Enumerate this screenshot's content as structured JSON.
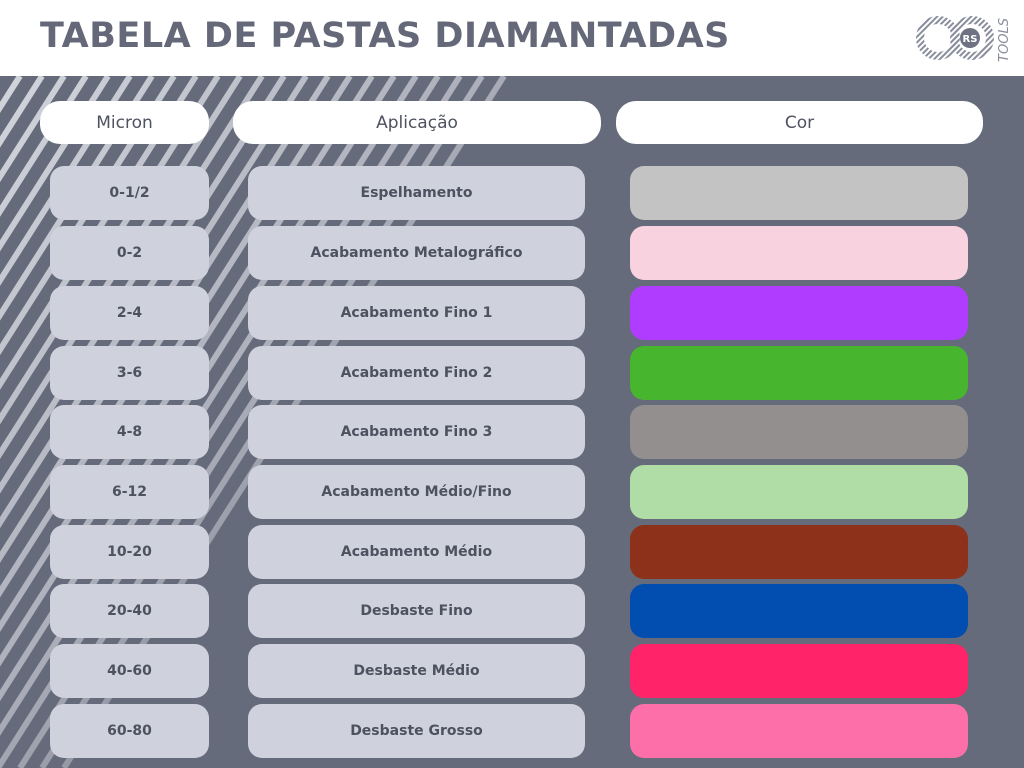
{
  "title": "TABELA DE PASTAS DIAMANTADAS",
  "logo": {
    "text": "RS",
    "subtext": "TOOLS"
  },
  "headers": {
    "micron": "Micron",
    "application": "Aplicação",
    "color": "Cor"
  },
  "rows": [
    {
      "micron": "0-1/2",
      "application": "Espelhamento",
      "color": "#c4c3c4"
    },
    {
      "micron": "0-2",
      "application": "Acabamento Metalográfico",
      "color": "#f8d2df"
    },
    {
      "micron": "2-4",
      "application": "Acabamento Fino 1",
      "color": "#b03cff"
    },
    {
      "micron": "3-6",
      "application": "Acabamento Fino 2",
      "color": "#48b52f"
    },
    {
      "micron": "4-8",
      "application": "Acabamento Fino 3",
      "color": "#948f8f"
    },
    {
      "micron": "6-12",
      "application": "Acabamento Médio/Fino",
      "color": "#b0dca5"
    },
    {
      "micron": "10-20",
      "application": "Acabamento Médio",
      "color": "#8d311b"
    },
    {
      "micron": "20-40",
      "application": "Desbaste Fino",
      "color": "#014db0"
    },
    {
      "micron": "40-60",
      "application": "Desbaste Médio",
      "color": "#ff2369"
    },
    {
      "micron": "60-80",
      "application": "Desbaste Grosso",
      "color": "#fc6fa9"
    }
  ]
}
